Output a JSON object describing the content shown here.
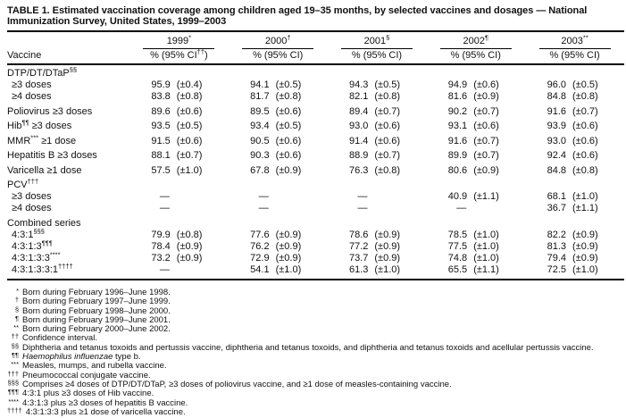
{
  "title": "TABLE 1. Estimated vaccination coverage among children aged 19–35 months, by selected vaccines and dosages — National Immunization Survey, United States, 1999–2003",
  "header": {
    "vaccine_col": "Vaccine",
    "years": [
      {
        "year": "1999",
        "marker": "*",
        "ci": {
          "pre": "% (95% CI",
          "sup": "††",
          "post": ")"
        }
      },
      {
        "year": "2000",
        "marker": "†",
        "ci": {
          "pre": "% (95% CI)",
          "sup": "",
          "post": ""
        }
      },
      {
        "year": "2001",
        "marker": "§",
        "ci": {
          "pre": "% (95% CI)",
          "sup": "",
          "post": ""
        }
      },
      {
        "year": "2002",
        "marker": "¶",
        "ci": {
          "pre": "% (95% CI)",
          "sup": "",
          "post": ""
        }
      },
      {
        "year": "2003",
        "marker": "**",
        "ci": {
          "pre": "% (95% CI)",
          "sup": "",
          "post": ""
        }
      }
    ]
  },
  "rows": [
    {
      "type": "section",
      "label": {
        "pre": "DTP/DT/DTaP",
        "sup": "§§",
        "post": ""
      }
    },
    {
      "type": "data",
      "indent": true,
      "label": {
        "pre": "≥3 doses",
        "sup": "",
        "post": ""
      },
      "values": [
        [
          "95.9",
          "(±0.4)"
        ],
        [
          "94.1",
          "(±0.5)"
        ],
        [
          "94.3",
          "(±0.5)"
        ],
        [
          "94.9",
          "(±0.6)"
        ],
        [
          "96.0",
          "(±0.5)"
        ]
      ]
    },
    {
      "type": "data",
      "indent": true,
      "label": {
        "pre": "≥4 doses",
        "sup": "",
        "post": ""
      },
      "values": [
        [
          "83.8",
          "(±0.8)"
        ],
        [
          "81.7",
          "(±0.8)"
        ],
        [
          "82.1",
          "(±0.8)"
        ],
        [
          "81.6",
          "(±0.9)"
        ],
        [
          "84.8",
          "(±0.8)"
        ]
      ]
    },
    {
      "type": "data",
      "gap": true,
      "label": {
        "pre": "Poliovirus ≥3 doses",
        "sup": "",
        "post": ""
      },
      "values": [
        [
          "89.6",
          "(±0.6)"
        ],
        [
          "89.5",
          "(±0.6)"
        ],
        [
          "89.4",
          "(±0.7)"
        ],
        [
          "90.2",
          "(±0.7)"
        ],
        [
          "91.6",
          "(±0.7)"
        ]
      ]
    },
    {
      "type": "data",
      "gap": true,
      "label": {
        "pre": "Hib",
        "sup": "¶¶",
        "post": " ≥3 doses"
      },
      "values": [
        [
          "93.5",
          "(±0.5)"
        ],
        [
          "93.4",
          "(±0.5)"
        ],
        [
          "93.0",
          "(±0.6)"
        ],
        [
          "93.1",
          "(±0.6)"
        ],
        [
          "93.9",
          "(±0.6)"
        ]
      ]
    },
    {
      "type": "data",
      "gap": true,
      "label": {
        "pre": "MMR",
        "sup": "***",
        "post": " ≥1 dose"
      },
      "values": [
        [
          "91.5",
          "(±0.6)"
        ],
        [
          "90.5",
          "(±0.6)"
        ],
        [
          "91.4",
          "(±0.6)"
        ],
        [
          "91.6",
          "(±0.7)"
        ],
        [
          "93.0",
          "(±0.6)"
        ]
      ]
    },
    {
      "type": "data",
      "gap": true,
      "label": {
        "pre": "Hepatitis B ≥3 doses",
        "sup": "",
        "post": ""
      },
      "values": [
        [
          "88.1",
          "(±0.7)"
        ],
        [
          "90.3",
          "(±0.6)"
        ],
        [
          "88.9",
          "(±0.7)"
        ],
        [
          "89.9",
          "(±0.7)"
        ],
        [
          "92.4",
          "(±0.6)"
        ]
      ]
    },
    {
      "type": "data",
      "gap": true,
      "label": {
        "pre": "Varicella ≥1 dose",
        "sup": "",
        "post": ""
      },
      "values": [
        [
          "57.5",
          "(±1.0)"
        ],
        [
          "67.8",
          "(±0.9)"
        ],
        [
          "76.3",
          "(±0.8)"
        ],
        [
          "80.6",
          "(±0.9)"
        ],
        [
          "84.8",
          "(±0.8)"
        ]
      ]
    },
    {
      "type": "section",
      "gap": true,
      "label": {
        "pre": "PCV",
        "sup": "†††",
        "post": ""
      }
    },
    {
      "type": "data",
      "indent": true,
      "label": {
        "pre": "≥3 doses",
        "sup": "",
        "post": ""
      },
      "values": [
        [
          "—",
          ""
        ],
        [
          "—",
          ""
        ],
        [
          "—",
          ""
        ],
        [
          "40.9",
          "(±1.1)"
        ],
        [
          "68.1",
          "(±1.0)"
        ]
      ]
    },
    {
      "type": "data",
      "indent": true,
      "label": {
        "pre": "≥4 doses",
        "sup": "",
        "post": ""
      },
      "values": [
        [
          "—",
          ""
        ],
        [
          "—",
          ""
        ],
        [
          "—",
          ""
        ],
        [
          "—",
          ""
        ],
        [
          "36.7",
          "(±1.1)"
        ]
      ]
    },
    {
      "type": "section",
      "gap": true,
      "label": {
        "pre": "Combined series",
        "sup": "",
        "post": ""
      }
    },
    {
      "type": "data",
      "indent": true,
      "label": {
        "pre": "4:3:1",
        "sup": "§§§",
        "post": ""
      },
      "values": [
        [
          "79.9",
          "(±0.8)"
        ],
        [
          "77.6",
          "(±0.9)"
        ],
        [
          "78.6",
          "(±0.9)"
        ],
        [
          "78.5",
          "(±1.0)"
        ],
        [
          "82.2",
          "(±0.9)"
        ]
      ]
    },
    {
      "type": "data",
      "indent": true,
      "label": {
        "pre": "4:3:1:3",
        "sup": "¶¶¶",
        "post": ""
      },
      "values": [
        [
          "78.4",
          "(±0.9)"
        ],
        [
          "76.2",
          "(±0.9)"
        ],
        [
          "77.2",
          "(±0.9)"
        ],
        [
          "77.5",
          "(±1.0)"
        ],
        [
          "81.3",
          "(±0.9)"
        ]
      ]
    },
    {
      "type": "data",
      "indent": true,
      "label": {
        "pre": "4:3:1:3:3",
        "sup": "****",
        "post": ""
      },
      "values": [
        [
          "73.2",
          "(±0.9)"
        ],
        [
          "72.9",
          "(±0.9)"
        ],
        [
          "73.7",
          "(±0.9)"
        ],
        [
          "74.8",
          "(±1.0)"
        ],
        [
          "79.4",
          "(±0.9)"
        ]
      ]
    },
    {
      "type": "data",
      "indent": true,
      "label": {
        "pre": "4:3:1:3:3:1",
        "sup": "††††",
        "post": ""
      },
      "values": [
        [
          "—",
          ""
        ],
        [
          "54.1",
          "(±1.0)"
        ],
        [
          "61.3",
          "(±1.0)"
        ],
        [
          "65.5",
          "(±1.1)"
        ],
        [
          "72.5",
          "(±1.0)"
        ]
      ]
    }
  ],
  "footnotes": [
    {
      "marker": "*",
      "parts": [
        {
          "text": "Born during February 1996–June 1998."
        }
      ]
    },
    {
      "marker": "†",
      "parts": [
        {
          "text": "Born during February 1997–June 1999."
        }
      ]
    },
    {
      "marker": "§",
      "parts": [
        {
          "text": "Born during February 1998–June 2000."
        }
      ]
    },
    {
      "marker": "¶",
      "parts": [
        {
          "text": "Born during February 1999–June 2001."
        }
      ]
    },
    {
      "marker": "**",
      "parts": [
        {
          "text": "Born during February 2000–June 2002."
        }
      ]
    },
    {
      "marker": "††",
      "parts": [
        {
          "text": "Confidence interval."
        }
      ]
    },
    {
      "marker": "§§",
      "parts": [
        {
          "text": "Diphtheria and tetanus toxoids and pertussis vaccine, diphtheria and tetanus toxoids, and diphtheria and tetanus toxoids and acellular pertussis vaccine."
        }
      ]
    },
    {
      "marker": "¶¶",
      "parts": [
        {
          "text": "Haemophilus influenzae",
          "italic": true
        },
        {
          "text": " type b."
        }
      ]
    },
    {
      "marker": "***",
      "parts": [
        {
          "text": "Measles, mumps, and rubella vaccine."
        }
      ]
    },
    {
      "marker": "†††",
      "parts": [
        {
          "text": "Pneumococcal conjugate vaccine."
        }
      ]
    },
    {
      "marker": "§§§",
      "parts": [
        {
          "text": "Comprises ≥4 doses of DTP/DT/DTaP, ≥3 doses of poliovirus vaccine, and ≥1 dose of measles-containing vaccine."
        }
      ]
    },
    {
      "marker": "¶¶¶",
      "parts": [
        {
          "text": "4:3:1 plus ≥3 doses of Hib vaccine."
        }
      ]
    },
    {
      "marker": "****",
      "parts": [
        {
          "text": "4:3:1:3 plus ≥3 doses of hepatitis B vaccine."
        }
      ]
    },
    {
      "marker": "††††",
      "parts": [
        {
          "text": "4:3:1:3:3 plus ≥1 dose of varicella vaccine."
        }
      ]
    }
  ],
  "colors": {
    "text": "#111111",
    "rule": "#000000",
    "background": "#ffffff"
  }
}
